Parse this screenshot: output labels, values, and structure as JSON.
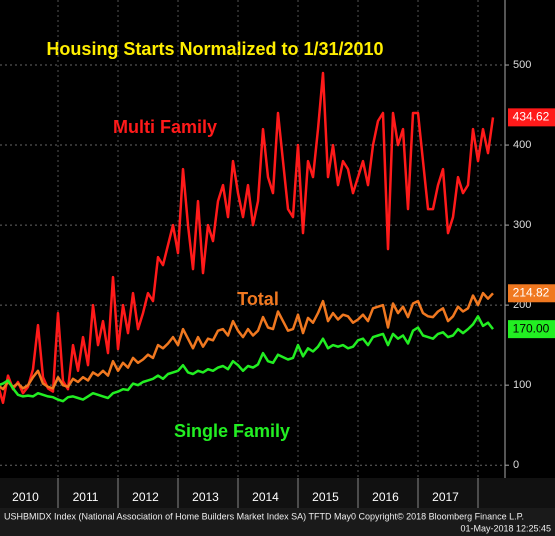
{
  "chart_data": {
    "type": "line",
    "title": "Housing Starts Normalized to 1/31/2010",
    "footer": "USHBMIDX Index (National Association of Home Builders Market Index SA) TFTD May0  Copyright© 2018 Bloomberg Finance L.P.",
    "timestamp": "01-May-2018 12:25:45",
    "categories": [
      null,
      null,
      null,
      null,
      null,
      "2010",
      null,
      null,
      null,
      null,
      null,
      null,
      null,
      null,
      null,
      null,
      null,
      "2011",
      null,
      null,
      null,
      null,
      null,
      null,
      null,
      null,
      null,
      null,
      null,
      "2012",
      null,
      null,
      null,
      null,
      null,
      null,
      null,
      null,
      null,
      null,
      null,
      "2013",
      null,
      null,
      null,
      null,
      null,
      null,
      null,
      null,
      null,
      null,
      null,
      "2014",
      null,
      null,
      null,
      null,
      null,
      null,
      null,
      null,
      null,
      null,
      null,
      "2015",
      null,
      null,
      null,
      null,
      null,
      null,
      null,
      null,
      null,
      null,
      null,
      "2016",
      null,
      null,
      null,
      null,
      null,
      null,
      null,
      null,
      null,
      null,
      null,
      "2017",
      null,
      null,
      null,
      null,
      null,
      null,
      null,
      null,
      null,
      null
    ],
    "ylim": [
      -16,
      575
    ],
    "yticks": [
      0,
      100,
      200,
      300,
      400,
      500
    ],
    "grid": true,
    "series": [
      {
        "name": "Multi Family",
        "color": "#ff1a1a",
        "end_label": "434.62",
        "values": [
          100,
          78,
          112,
          95,
          104,
          90,
          98,
          120,
          175,
          110,
          96,
          92,
          190,
          105,
          95,
          150,
          118,
          160,
          125,
          200,
          150,
          180,
          140,
          235,
          145,
          200,
          165,
          215,
          170,
          190,
          215,
          205,
          260,
          250,
          275,
          300,
          265,
          370,
          300,
          245,
          330,
          240,
          300,
          280,
          330,
          350,
          310,
          380,
          340,
          310,
          350,
          300,
          330,
          420,
          360,
          340,
          440,
          380,
          320,
          310,
          400,
          290,
          380,
          360,
          420,
          490,
          360,
          400,
          350,
          380,
          370,
          340,
          360,
          380,
          350,
          400,
          430,
          440,
          270,
          440,
          400,
          420,
          320,
          440,
          440,
          380,
          320,
          320,
          350,
          370,
          290,
          310,
          360,
          340,
          350,
          420,
          380,
          420,
          390,
          434.62
        ]
      },
      {
        "name": "Total",
        "color": "#f07820",
        "end_label": "214.82",
        "values": [
          100,
          95,
          104,
          98,
          102,
          96,
          100,
          110,
          118,
          102,
          98,
          96,
          110,
          100,
          98,
          108,
          104,
          110,
          106,
          116,
          112,
          118,
          112,
          130,
          118,
          128,
          122,
          134,
          128,
          132,
          138,
          134,
          150,
          146,
          152,
          160,
          150,
          170,
          158,
          146,
          160,
          148,
          158,
          156,
          168,
          170,
          162,
          180,
          168,
          160,
          170,
          162,
          168,
          185,
          172,
          170,
          192,
          180,
          168,
          170,
          188,
          165,
          184,
          178,
          190,
          205,
          180,
          190,
          182,
          188,
          186,
          178,
          182,
          188,
          180,
          196,
          198,
          200,
          172,
          202,
          190,
          198,
          185,
          202,
          205,
          190,
          186,
          185,
          192,
          196,
          180,
          186,
          198,
          192,
          196,
          212,
          200,
          215,
          208,
          214.82
        ]
      },
      {
        "name": "Single Family",
        "color": "#22ee22",
        "end_label": "170.00",
        "values": [
          100,
          102,
          106,
          96,
          88,
          86,
          87,
          86,
          90,
          88,
          86,
          85,
          82,
          80,
          85,
          86,
          84,
          82,
          86,
          90,
          88,
          86,
          84,
          90,
          92,
          95,
          94,
          102,
          100,
          104,
          106,
          108,
          112,
          108,
          114,
          116,
          118,
          125,
          116,
          114,
          118,
          116,
          120,
          118,
          122,
          124,
          120,
          130,
          125,
          118,
          124,
          122,
          126,
          140,
          130,
          128,
          138,
          135,
          132,
          134,
          150,
          136,
          146,
          142,
          148,
          158,
          146,
          150,
          148,
          150,
          146,
          148,
          156,
          158,
          150,
          160,
          162,
          164,
          150,
          164,
          158,
          162,
          152,
          168,
          172,
          162,
          160,
          158,
          164,
          166,
          160,
          162,
          170,
          165,
          170,
          176,
          186,
          174,
          178,
          170
        ]
      }
    ]
  }
}
